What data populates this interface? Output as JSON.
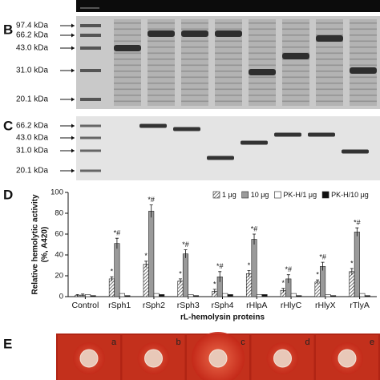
{
  "panels": {
    "B": {
      "label": "B",
      "markers": [
        "97.4 kDa",
        "66.2 kDa",
        "43.0 kDa",
        "31.0 kDa",
        "20.1 kDa"
      ]
    },
    "C": {
      "label": "C",
      "markers": [
        "66.2 kDa",
        "43.0 kDa",
        "31.0 kDa",
        "20.1 kDa"
      ]
    },
    "D": {
      "label": "D"
    },
    "E": {
      "label": "E",
      "plates": [
        "a",
        "b",
        "c",
        "d",
        "e"
      ]
    }
  },
  "chart_data": {
    "type": "bar",
    "ylabel": [
      "Relative hemolytic activity",
      "(%, A420)"
    ],
    "xlabel": "rL-hemolysin proteins",
    "categories": [
      "Control",
      "rSph1",
      "rSph2",
      "rSph3",
      "rSph4",
      "rHlpA",
      "rHlyC",
      "rHlyX",
      "rTlyA"
    ],
    "series": [
      {
        "name": "1 μg",
        "color": "#555555",
        "pattern": "hatch",
        "values": [
          1,
          17,
          31,
          15,
          5,
          22,
          6,
          14,
          24
        ],
        "errors": [
          1,
          2,
          3,
          2,
          2,
          3,
          2,
          2,
          3
        ],
        "markers": [
          null,
          "*",
          "*",
          "*",
          "*",
          "*",
          "*",
          "*",
          "*"
        ]
      },
      {
        "name": "10 μg",
        "color": "#9a9a9a",
        "values": [
          1.5,
          51,
          82,
          41,
          19,
          55,
          17,
          29,
          62
        ],
        "errors": [
          1,
          5,
          6,
          4,
          5,
          5,
          4,
          4,
          4
        ],
        "markers": [
          null,
          "*#",
          "*#",
          "*#",
          "*#",
          "*#",
          "*#",
          "*#",
          "*#"
        ]
      },
      {
        "name": "PK-H/1 μg",
        "color": "#ffffff",
        "values": [
          2,
          3,
          3,
          2,
          3,
          2,
          3,
          2,
          3
        ]
      },
      {
        "name": "PK-H/10 μg",
        "color": "#111111",
        "values": [
          1,
          1,
          2,
          1,
          2,
          2,
          1,
          1,
          1
        ]
      }
    ],
    "ylim": [
      0,
      100
    ],
    "yticks": [
      0,
      20,
      40,
      60,
      80,
      100
    ]
  }
}
